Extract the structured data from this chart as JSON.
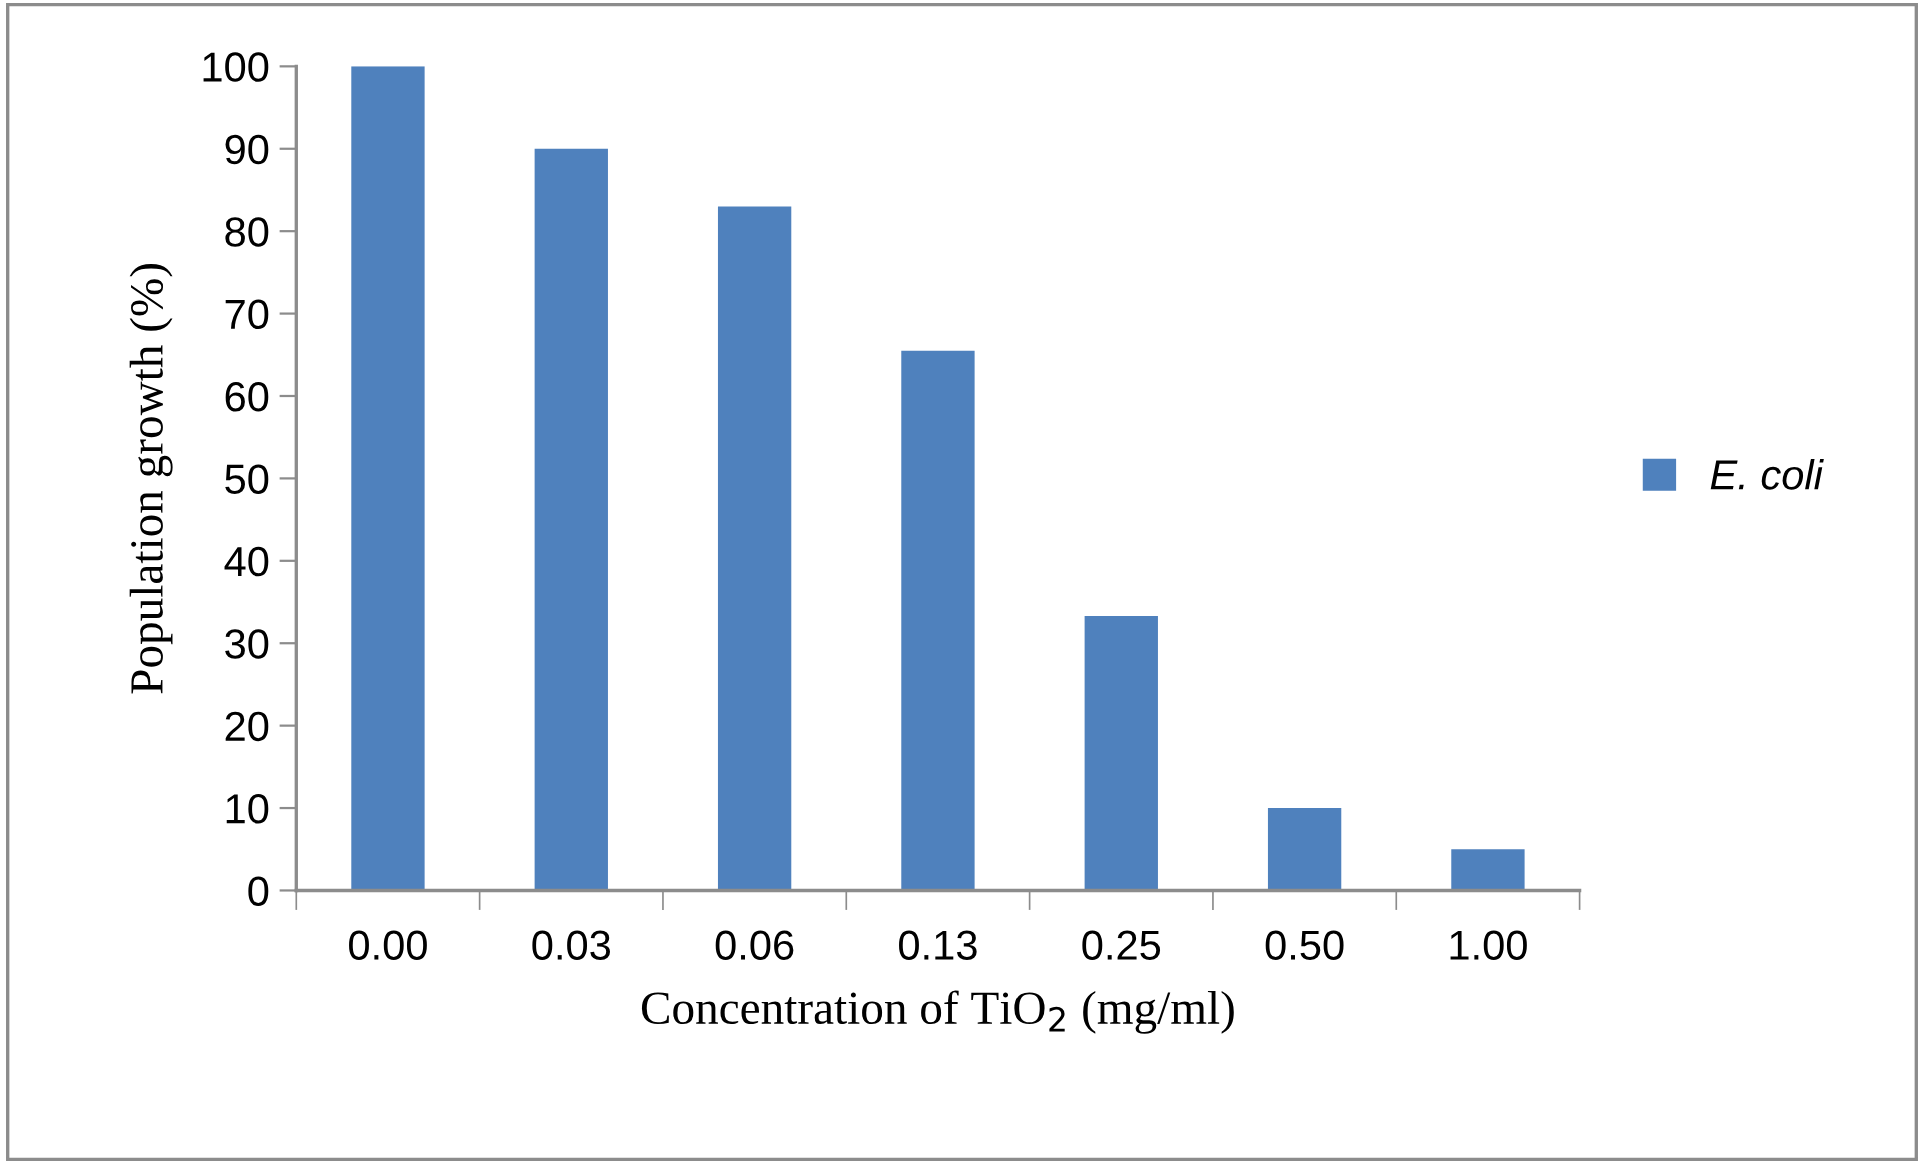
{
  "chart_data": {
    "type": "bar",
    "xlabel": "Concentration of TiO$_{2}$ (mg/ml)",
    "ylabel": "Population growth (%)",
    "categories": [
      "0.00",
      "0.03",
      "0.06",
      "0.13",
      "0.25",
      "0.50",
      "1.00"
    ],
    "series": [
      {
        "name": "E. coli",
        "color": "#4f81bd",
        "values": [
          100,
          90,
          83,
          65.5,
          33.3,
          10,
          5
        ]
      }
    ],
    "ylim": [
      0,
      100
    ],
    "yticks": [
      0,
      10,
      20,
      30,
      40,
      50,
      60,
      70,
      80,
      90,
      100
    ],
    "grid": false,
    "legend": "right"
  }
}
